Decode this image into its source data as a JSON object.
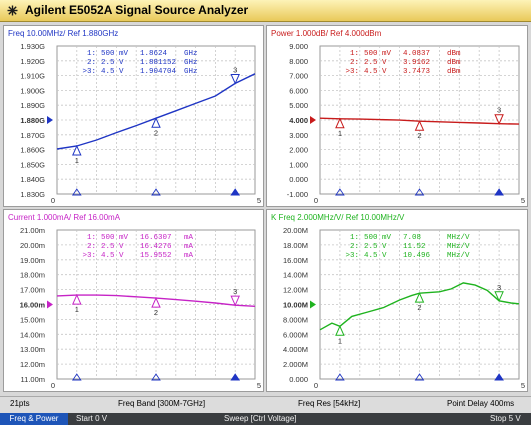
{
  "window": {
    "title": "Agilent E5052A Signal Source Analyzer"
  },
  "panels": [
    {
      "title": "Freq 10.00MHz/ Ref 1.880GHz",
      "color": "#1f35c4",
      "ref_label": "1.880G",
      "ticks": [
        "1.930G",
        "1.920G",
        "1.910G",
        "1.900G",
        "1.890G",
        "1.880G",
        "1.870G",
        "1.860G",
        "1.850G",
        "1.840G",
        "1.830G"
      ],
      "ymin": 1.83,
      "ymax": 1.93,
      "curve": [
        [
          0,
          1.8604
        ],
        [
          0.5,
          1.8624
        ],
        [
          1,
          1.8665
        ],
        [
          1.5,
          1.8715
        ],
        [
          2,
          1.8762
        ],
        [
          2.5,
          1.8812
        ],
        [
          3,
          1.8862
        ],
        [
          3.5,
          1.8912
        ],
        [
          4,
          1.8962
        ],
        [
          4.5,
          1.9047
        ],
        [
          5,
          1.9112
        ]
      ],
      "markers": [
        {
          "label": "1",
          "x": 0.5,
          "y": 1.8624
        },
        {
          "label": "2",
          "x": 2.5,
          "y": 1.88115
        },
        {
          "label": "3",
          "x": 4.5,
          "y": 1.904704
        }
      ],
      "readouts": [
        {
          "id": "1:",
          "voltage": "500 mV",
          "value": "1.8624",
          "unit": "GHz"
        },
        {
          "id": "2:",
          "voltage": "2.5 V",
          "value": "1.881152",
          "unit": "GHz"
        },
        {
          "id": ">3:",
          "voltage": "4.5 V",
          "value": "1.904704",
          "unit": "GHz"
        }
      ]
    },
    {
      "title": "Power 1.000dB/ Ref 4.000dBm",
      "color": "#c81b1b",
      "ref_label": "4.000",
      "ticks": [
        "9.000",
        "8.000",
        "7.000",
        "6.000",
        "5.000",
        "4.000",
        "3.000",
        "2.000",
        "1.000",
        "0.000",
        "-1.000"
      ],
      "ymin": -1,
      "ymax": 9,
      "curve": [
        [
          0,
          4.12
        ],
        [
          0.5,
          4.0837
        ],
        [
          1,
          4.06
        ],
        [
          1.5,
          4.03
        ],
        [
          2,
          3.99
        ],
        [
          2.5,
          3.9162
        ],
        [
          3,
          3.88
        ],
        [
          3.5,
          3.84
        ],
        [
          4,
          3.8
        ],
        [
          4.5,
          3.7473
        ],
        [
          5,
          3.72
        ]
      ],
      "markers": [
        {
          "label": "1",
          "x": 0.5,
          "y": 4.0837
        },
        {
          "label": "2",
          "x": 2.5,
          "y": 3.9162
        },
        {
          "label": "3",
          "x": 4.5,
          "y": 3.7473
        }
      ],
      "readouts": [
        {
          "id": "1:",
          "voltage": "500 mV",
          "value": "4.0837",
          "unit": "dBm"
        },
        {
          "id": "2:",
          "voltage": "2.5 V",
          "value": "3.9162",
          "unit": "dBm"
        },
        {
          "id": ">3:",
          "voltage": "4.5 V",
          "value": "3.7473",
          "unit": "dBm"
        }
      ]
    },
    {
      "title": "Current 1.000mA/ Ref 16.00mA",
      "color": "#c623c6",
      "ref_label": "16.00m",
      "ticks": [
        "21.00m",
        "20.00m",
        "19.00m",
        "18.00m",
        "17.00m",
        "16.00m",
        "15.00m",
        "14.00m",
        "13.00m",
        "12.00m",
        "11.00m"
      ],
      "ymin": 11,
      "ymax": 21,
      "curve": [
        [
          0,
          16.58
        ],
        [
          0.5,
          16.6307
        ],
        [
          1,
          16.63
        ],
        [
          1.5,
          16.6
        ],
        [
          2,
          16.52
        ],
        [
          2.5,
          16.4276
        ],
        [
          3,
          16.33
        ],
        [
          3.5,
          16.22
        ],
        [
          4,
          16.1
        ],
        [
          4.5,
          15.9552
        ],
        [
          5,
          15.88
        ]
      ],
      "markers": [
        {
          "label": "1",
          "x": 0.5,
          "y": 16.6307
        },
        {
          "label": "2",
          "x": 2.5,
          "y": 16.4276
        },
        {
          "label": "3",
          "x": 4.5,
          "y": 15.9552
        }
      ],
      "readouts": [
        {
          "id": "1:",
          "voltage": "500 mV",
          "value": "16.6307",
          "unit": "mA"
        },
        {
          "id": "2:",
          "voltage": "2.5 V",
          "value": "16.4276",
          "unit": "mA"
        },
        {
          "id": ">3:",
          "voltage": "4.5 V",
          "value": "15.9552",
          "unit": "mA"
        }
      ]
    },
    {
      "title": "K Freq 2.000MHz/V/ Ref 10.00MHz/V",
      "color": "#1fb31f",
      "ref_label": "10.00M",
      "ticks": [
        "20.00M",
        "18.00M",
        "16.00M",
        "14.00M",
        "12.00M",
        "10.00M",
        "8.000M",
        "6.000M",
        "4.000M",
        "2.000M",
        "0.000"
      ],
      "ymin": 0,
      "ymax": 20,
      "curve": [
        [
          0,
          6.6
        ],
        [
          0.3,
          7.5
        ],
        [
          0.5,
          7.08
        ],
        [
          0.8,
          8.4
        ],
        [
          1.2,
          9.0
        ],
        [
          1.6,
          9.6
        ],
        [
          2.0,
          10.6
        ],
        [
          2.3,
          11.2
        ],
        [
          2.5,
          11.52
        ],
        [
          3.0,
          11.7
        ],
        [
          3.3,
          12.1
        ],
        [
          3.6,
          12.9
        ],
        [
          3.9,
          12.6
        ],
        [
          4.2,
          11.9
        ],
        [
          4.5,
          10.496
        ],
        [
          4.8,
          10.2
        ],
        [
          5,
          10.1
        ]
      ],
      "markers": [
        {
          "label": "1",
          "x": 0.5,
          "y": 7.08
        },
        {
          "label": "2",
          "x": 2.5,
          "y": 11.52
        },
        {
          "label": "3",
          "x": 4.5,
          "y": 10.496
        }
      ],
      "readouts": [
        {
          "id": "1:",
          "voltage": "500 mV",
          "value": "7.08",
          "unit": "MHz/V"
        },
        {
          "id": "2:",
          "voltage": "2.5 V",
          "value": "11.52",
          "unit": "MHz/V"
        },
        {
          "id": ">3:",
          "voltage": "4.5 V",
          "value": "10.496",
          "unit": "MHz/V"
        }
      ]
    }
  ],
  "footer": {
    "points": "21pts",
    "freq_band": "Freq Band [300M-7GHz]",
    "freq_res": "Freq Res [54kHz]",
    "point_delay": "Point Delay 400ms"
  },
  "status": {
    "mode": "Freq & Power",
    "start": "Start 0 V",
    "sweep": "Sweep [Ctrl Voltage]",
    "stop": "Stop 5 V"
  },
  "x_axis": {
    "min": 0,
    "max": 5,
    "end_labels": [
      "0",
      "5"
    ]
  }
}
